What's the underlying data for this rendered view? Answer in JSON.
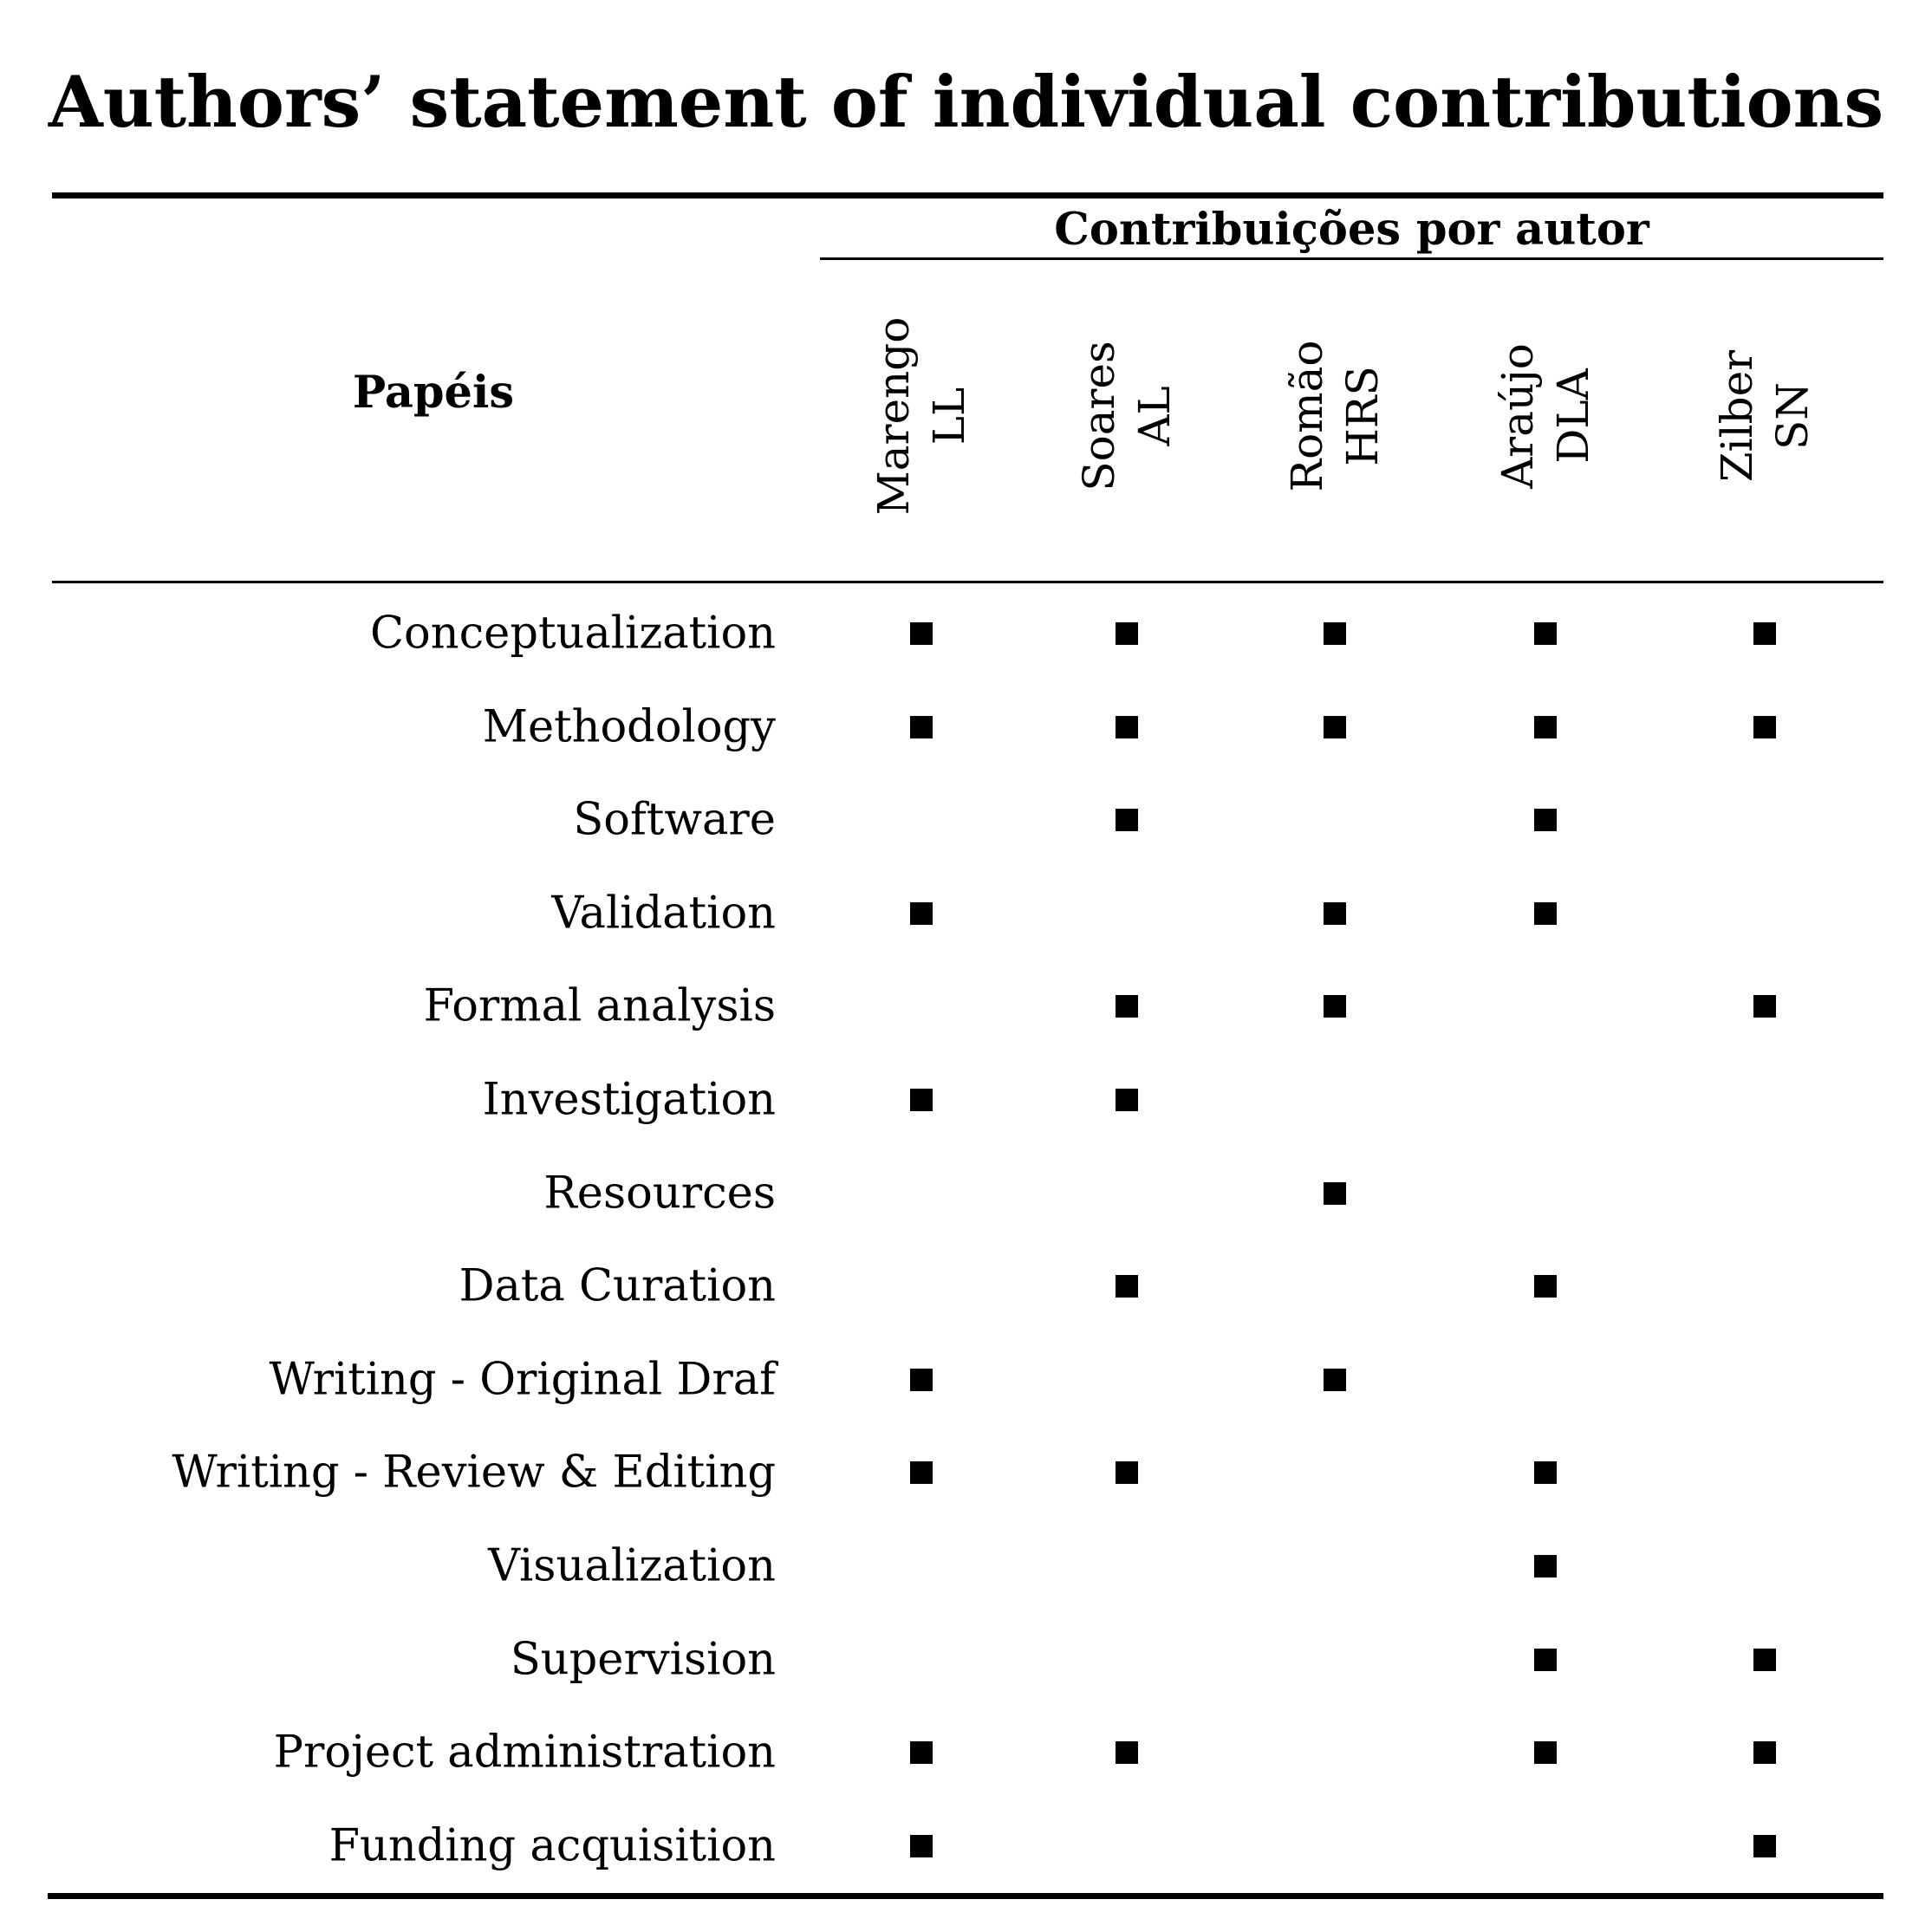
{
  "title": "Authors’ statement of individual contributions",
  "table": {
    "group_header": "Contribuições por autor",
    "roles_header": "Papéis",
    "authors": [
      {
        "surname": "Marengo",
        "initials": "LL"
      },
      {
        "surname": "Soares",
        "initials": "AL"
      },
      {
        "surname": "Romão",
        "initials": "HRS"
      },
      {
        "surname": "Araújo",
        "initials": "DLA"
      },
      {
        "surname": "Zilber",
        "initials": "SN"
      }
    ],
    "mark_symbol": "■",
    "rows": [
      {
        "role": "Conceptualization",
        "marks": [
          true,
          true,
          true,
          true,
          true
        ]
      },
      {
        "role": "Methodology",
        "marks": [
          true,
          true,
          true,
          true,
          true
        ]
      },
      {
        "role": "Software",
        "marks": [
          false,
          true,
          false,
          true,
          false
        ]
      },
      {
        "role": "Validation",
        "marks": [
          true,
          false,
          true,
          true,
          false
        ]
      },
      {
        "role": "Formal analysis",
        "marks": [
          false,
          true,
          true,
          false,
          true
        ]
      },
      {
        "role": "Investigation",
        "marks": [
          true,
          true,
          false,
          false,
          false
        ]
      },
      {
        "role": "Resources",
        "marks": [
          false,
          false,
          true,
          false,
          false
        ]
      },
      {
        "role": "Data Curation",
        "marks": [
          false,
          true,
          false,
          true,
          false
        ]
      },
      {
        "role": "Writing - Original Draf",
        "marks": [
          true,
          false,
          true,
          false,
          false
        ]
      },
      {
        "role": "Writing - Review & Editing",
        "marks": [
          true,
          true,
          false,
          true,
          false
        ]
      },
      {
        "role": "Visualization",
        "marks": [
          false,
          false,
          false,
          true,
          false
        ]
      },
      {
        "role": "Supervision",
        "marks": [
          false,
          false,
          false,
          true,
          true
        ]
      },
      {
        "role": "Project administration",
        "marks": [
          true,
          true,
          false,
          true,
          true
        ]
      },
      {
        "role": "Funding acquisition",
        "marks": [
          true,
          false,
          false,
          false,
          true
        ]
      }
    ]
  }
}
